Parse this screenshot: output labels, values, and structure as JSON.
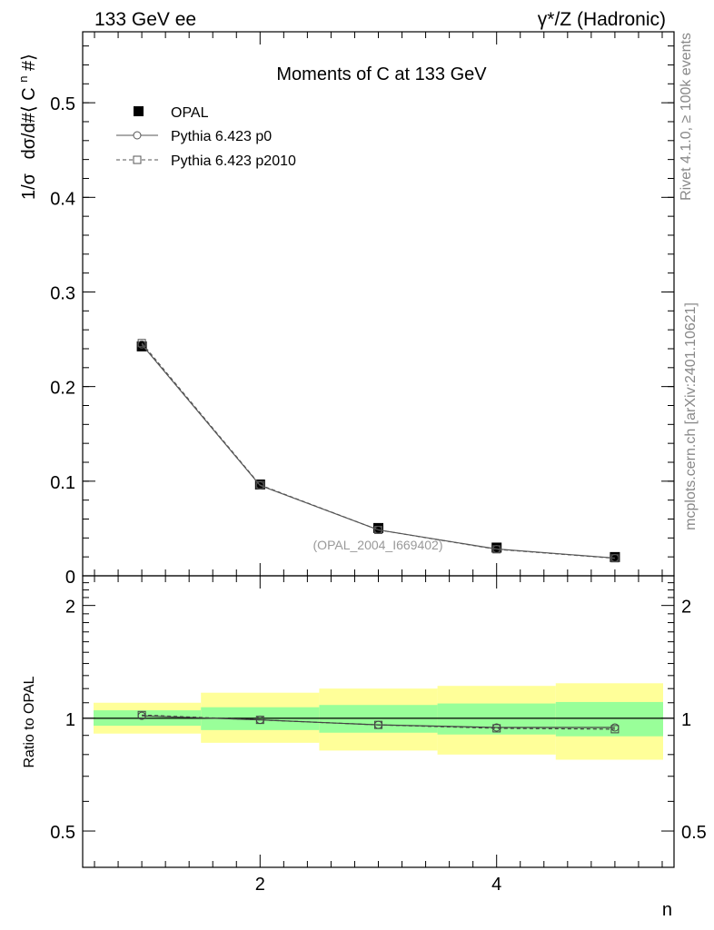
{
  "header": {
    "left": "133 GeV ee",
    "right": "γ*/Z (Hadronic)"
  },
  "side_labels": {
    "rivet": "Rivet 4.1.0, ≥ 100k events",
    "mcplots": "mcplots.cern.ch [arXiv:2401.10621]"
  },
  "colors": {
    "data": "#000000",
    "mc": "#555555",
    "band_inner": "#99ff99",
    "band_outer": "#ffff99"
  },
  "chart_data": [
    {
      "type": "line",
      "panel": "main",
      "title": "Moments of C at 133 GeV",
      "ylabel_parts": [
        "1/σ",
        "dσ/d#⟨ C",
        "n",
        " #⟩"
      ],
      "xlabel": "",
      "xlim": [
        0.5,
        5.5
      ],
      "ylim": [
        0,
        0.575
      ],
      "y_ticks": [
        0,
        0.1,
        0.2,
        0.3,
        0.4,
        0.5
      ],
      "y_tick_labels": [
        "0",
        "0.1",
        "0.2",
        "0.3",
        "0.4",
        "0.5"
      ],
      "watermark": "(OPAL_2004_I669402)",
      "legend_position": "top-left",
      "x": [
        1,
        2,
        3,
        4,
        5
      ],
      "series": [
        {
          "name": "OPAL",
          "style": "data-square",
          "values": [
            0.2425,
            0.0965,
            0.0505,
            0.0298,
            0.0198
          ],
          "errors": [
            0.0045,
            0.0025,
            0.002,
            0.0015,
            0.0012
          ]
        },
        {
          "name": "Pythia 6.423 p0",
          "style": "solid-circle",
          "values": [
            0.2445,
            0.0955,
            0.0485,
            0.0283,
            0.0188
          ]
        },
        {
          "name": "Pythia 6.423 p2010",
          "style": "dashed-square",
          "values": [
            0.246,
            0.096,
            0.0485,
            0.028,
            0.0185
          ]
        }
      ]
    },
    {
      "type": "line",
      "panel": "ratio",
      "ylabel": "Ratio to OPAL",
      "xlabel": "n",
      "xlim": [
        0.5,
        5.5
      ],
      "ylim_log": [
        0.4,
        2.4
      ],
      "y_ticks": [
        0.5,
        1,
        2
      ],
      "y_tick_labels": [
        "0.5",
        "1",
        "2"
      ],
      "x_ticks": [
        2,
        4
      ],
      "x_tick_labels": [
        "2",
        "4"
      ],
      "bands": [
        {
          "x_range": [
            0.5,
            1.5
          ],
          "inner": [
            0.955,
            1.05
          ],
          "outer": [
            0.91,
            1.1
          ]
        },
        {
          "x_range": [
            1.5,
            2.5
          ],
          "inner": [
            0.93,
            1.07
          ],
          "outer": [
            0.86,
            1.17
          ]
        },
        {
          "x_range": [
            2.5,
            3.5
          ],
          "inner": [
            0.915,
            1.085
          ],
          "outer": [
            0.82,
            1.2
          ]
        },
        {
          "x_range": [
            3.5,
            4.5
          ],
          "inner": [
            0.905,
            1.095
          ],
          "outer": [
            0.8,
            1.22
          ]
        },
        {
          "x_range": [
            4.5,
            5.5
          ],
          "inner": [
            0.895,
            1.105
          ],
          "outer": [
            0.775,
            1.24
          ]
        }
      ],
      "x": [
        1,
        2,
        3,
        4,
        5
      ],
      "series": [
        {
          "name": "Pythia 6.423 p0",
          "style": "solid-circle",
          "values": [
            1.015,
            0.99,
            0.96,
            0.945,
            0.945
          ]
        },
        {
          "name": "Pythia 6.423 p2010",
          "style": "dashed-square",
          "values": [
            1.02,
            0.99,
            0.96,
            0.94,
            0.935
          ]
        }
      ]
    }
  ]
}
